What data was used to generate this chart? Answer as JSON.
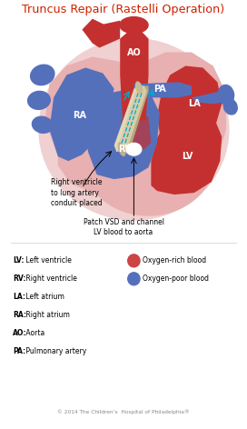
{
  "title": "Truncus Repair (Rastelli Operation)",
  "title_color": "#cc2200",
  "title_fontsize": 9.2,
  "bg_color": "#ffffff",
  "heart_red": "#c43030",
  "heart_red_dark": "#a02020",
  "heart_blue": "#5570bb",
  "heart_blue_dark": "#3a55a0",
  "heart_pink": "#e8b0b0",
  "heart_pink_light": "#f0d0d0",
  "conduit_tan": "#d8cca8",
  "conduit_dark": "#b8a878",
  "conduit_shadow": "#a09060",
  "cyan_arrow": "#00aacc",
  "abbreviations": [
    [
      "LV:",
      " Left ventricle"
    ],
    [
      "RV:",
      " Right ventricle"
    ],
    [
      "LA:",
      " Left atrium"
    ],
    [
      "RA:",
      " Right atrium"
    ],
    [
      "AO:",
      " Aorta"
    ],
    [
      "PA:",
      " Pulmonary artery"
    ]
  ],
  "copyright": "© 2014 The Children’s  Hospital of Philadelphia®"
}
